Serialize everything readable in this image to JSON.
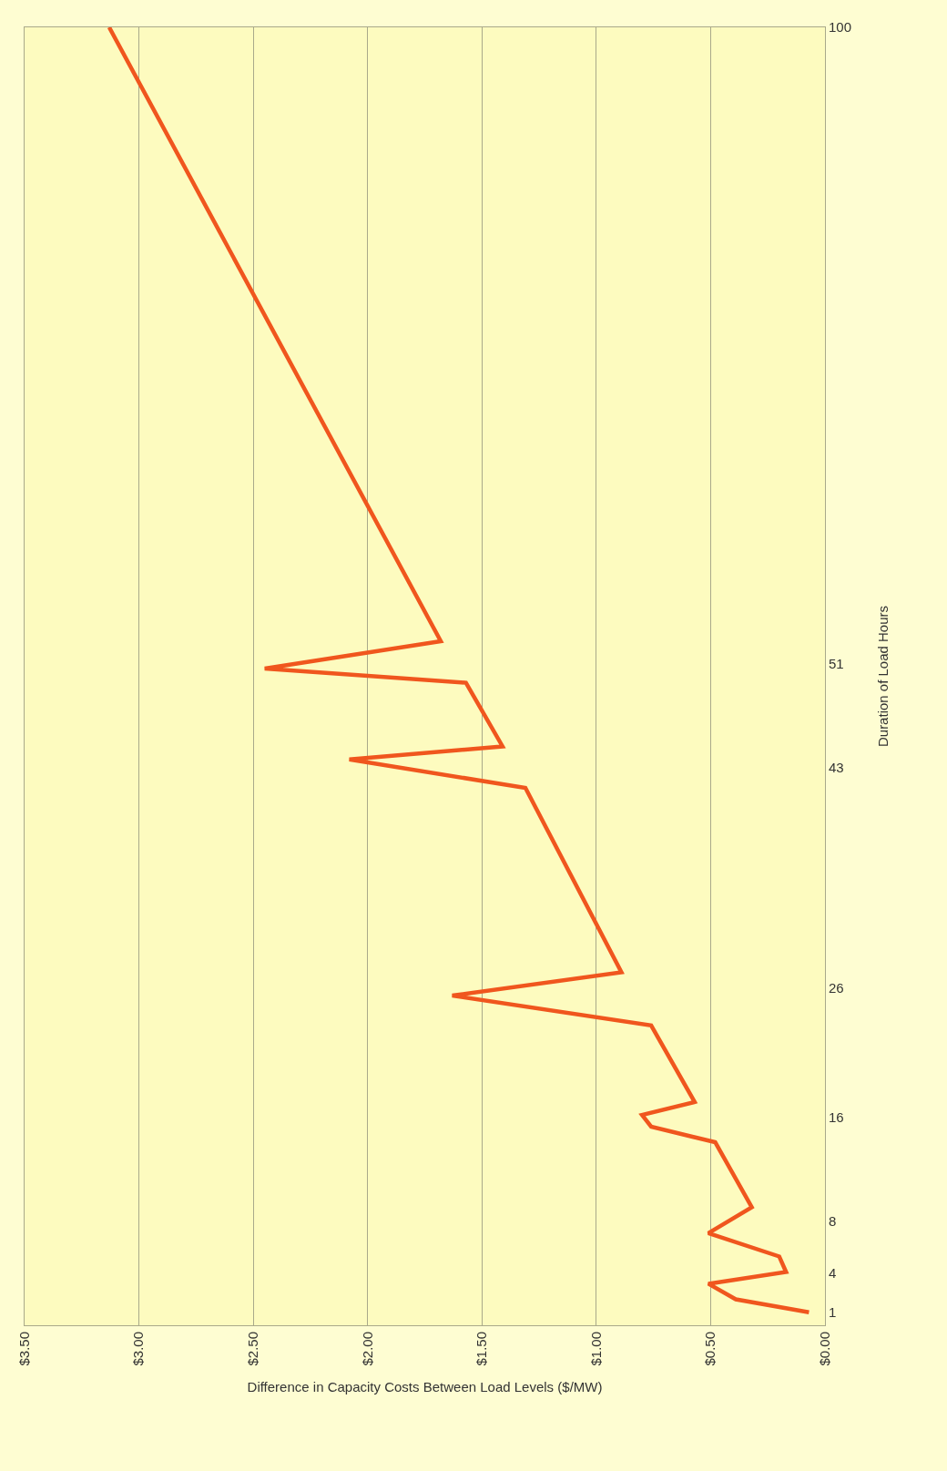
{
  "chart_data": {
    "type": "line",
    "orientation": "horizontal",
    "xlabel": "Difference in Capacity Costs Between Load Levels ($/MW)",
    "ylabel": "Duration of Load Hours",
    "x": [
      1,
      2,
      3.2,
      4.1,
      5.3,
      7.1,
      9.1,
      14.1,
      15.3,
      16.2,
      17.2,
      23.1,
      25.4,
      27.2,
      41.4,
      43.6,
      44.6,
      49.5,
      50.6,
      52.7,
      100
    ],
    "series": [
      {
        "color": "#f0561e",
        "values": [
          0.07,
          0.39,
          0.51,
          0.17,
          0.2,
          0.51,
          0.32,
          0.48,
          0.76,
          0.8,
          0.57,
          0.76,
          1.63,
          0.89,
          1.31,
          2.08,
          1.41,
          1.57,
          2.45,
          1.68,
          3.13
        ]
      }
    ],
    "xlim": [
      3.5,
      0
    ],
    "xticks": [
      {
        "value": 3.5,
        "label": "$3.50"
      },
      {
        "value": 3,
        "label": "$3.00"
      },
      {
        "value": 2.5,
        "label": "$2.50"
      },
      {
        "value": 2,
        "label": "$2.00"
      },
      {
        "value": 1.5,
        "label": "$1.50"
      },
      {
        "value": 1,
        "label": "$1.00"
      },
      {
        "value": 0.5,
        "label": "$0.50"
      },
      {
        "value": 0,
        "label": "$0.00"
      }
    ],
    "ylim": [
      0,
      100
    ],
    "yticks": [
      1,
      4,
      8,
      16,
      26,
      43,
      51,
      100
    ],
    "grid": "x",
    "marker": "none",
    "line_style": "solid"
  }
}
